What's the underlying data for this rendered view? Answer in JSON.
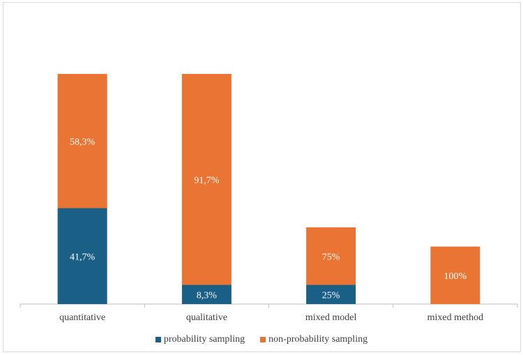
{
  "chart_data": {
    "type": "bar",
    "stacked": true,
    "categories": [
      "quantitative",
      "qualitative",
      "mixed model",
      "mixed method"
    ],
    "series": [
      {
        "name": "probability sampling",
        "color": "#1a5f86",
        "values": [
          5,
          1,
          1,
          0
        ],
        "labels": [
          "41,7%",
          "8,3%",
          "25%",
          ""
        ]
      },
      {
        "name": "non-probability sampling",
        "color": "#ea7433",
        "values": [
          7,
          11,
          3,
          3
        ],
        "labels": [
          "58,3%",
          "91,7%",
          "75%",
          "100%"
        ]
      }
    ],
    "legend_position": "bottom",
    "grid": false
  }
}
